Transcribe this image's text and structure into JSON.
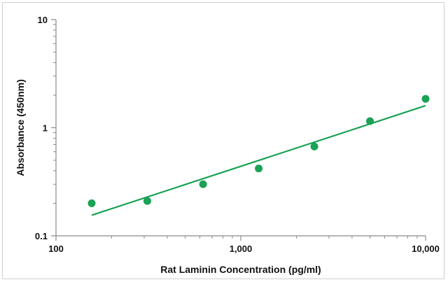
{
  "chart_data": {
    "type": "scatter",
    "title": "",
    "xlabel": "Rat Laminin Concentration (pg/ml)",
    "ylabel": "Absorbance (450nm)",
    "x_scale": "log",
    "y_scale": "log",
    "xlim": [
      100,
      10000
    ],
    "ylim": [
      0.1,
      10
    ],
    "x_ticks": [
      "100",
      "1,000",
      "10,000"
    ],
    "y_ticks": [
      "0.1",
      "1",
      "10"
    ],
    "grid": false,
    "legend": "none",
    "series": [
      {
        "x": [
          156,
          312,
          625,
          1250,
          2500,
          5000,
          10000
        ],
        "y": [
          0.2,
          0.21,
          0.3,
          0.42,
          0.67,
          1.15,
          1.85
        ]
      }
    ],
    "trendline": {
      "x": [
        156,
        10000
      ],
      "y": [
        0.155,
        1.6
      ]
    },
    "colors": {
      "points": "#1aa255",
      "line": "#1aa255",
      "axis": "#8a8a8a"
    }
  }
}
